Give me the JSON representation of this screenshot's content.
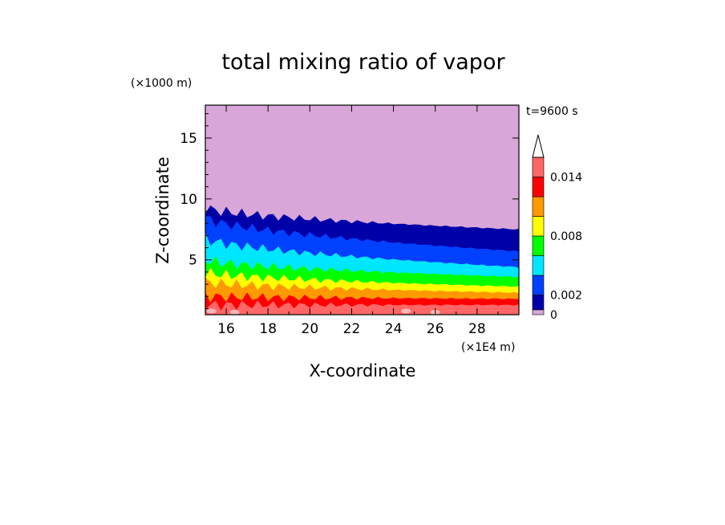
{
  "chart_data": {
    "type": "heatmap",
    "subtype": "filled-contour",
    "title": "total mixing ratio of vapor",
    "xlabel": "X-coordinate",
    "ylabel": "Z-coordinate",
    "x_unit": "(×1E4 m)",
    "y_unit": "(×1000 m)",
    "time_label": "t=9600 s",
    "xlim": [
      15,
      30
    ],
    "ylim": [
      0.5,
      17.7
    ],
    "x_ticks": [
      16,
      18,
      20,
      22,
      24,
      26,
      28
    ],
    "y_ticks": [
      5,
      10,
      15
    ],
    "grid": false,
    "colorbar": {
      "position": "right",
      "extend": "max",
      "bounds": [
        0,
        0.0005,
        0.002,
        0.004,
        0.006,
        0.008,
        0.01,
        0.012,
        0.014,
        0.016
      ],
      "colors": [
        "#d8a6d8",
        "#0000a8",
        "#0040ff",
        "#00e6ff",
        "#00ff00",
        "#ffff00",
        "#ff9900",
        "#ff0000",
        "#ff6666",
        "#f4b8b8"
      ],
      "tick_labels": [
        "0",
        "0.002",
        "0.008",
        "0.014"
      ],
      "tick_values": [
        0,
        0.002,
        0.008,
        0.014
      ]
    },
    "contour_bands": [
      {
        "level": "0-0.0005",
        "color": "#d8a6d8",
        "z_top_left": 17.7,
        "z_top_right": 17.7
      },
      {
        "level": "0.0005-0.002",
        "color": "#0000a8",
        "z_top_left": 9.3,
        "z_top_right": 7.5
      },
      {
        "level": "0.002-0.004",
        "color": "#0040ff",
        "z_top_left": 8.5,
        "z_top_right": 5.7
      },
      {
        "level": "0.004-0.006",
        "color": "#00e6ff",
        "z_top_left": 6.8,
        "z_top_right": 4.4
      },
      {
        "level": "0.006-0.008",
        "color": "#00ff00",
        "z_top_left": 5.0,
        "z_top_right": 3.6
      },
      {
        "level": "0.008-0.010",
        "color": "#ffff00",
        "z_top_left": 4.0,
        "z_top_right": 2.8
      },
      {
        "level": "0.010-0.012",
        "color": "#ff9900",
        "z_top_left": 3.2,
        "z_top_right": 2.3
      },
      {
        "level": "0.012-0.014",
        "color": "#ff0000",
        "z_top_left": 2.0,
        "z_top_right": 1.8
      },
      {
        "level": "0.014-0.016",
        "color": "#ff6666",
        "z_top_left": 1.3,
        "z_top_right": 1.3
      }
    ]
  }
}
